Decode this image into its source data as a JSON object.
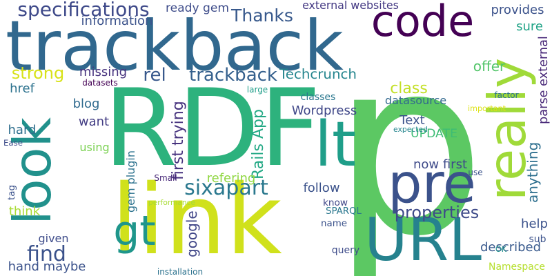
{
  "words": [
    {
      "text": "p",
      "color": "#5cc863"
    },
    {
      "text": "RDF",
      "color": "#2db27d"
    },
    {
      "text": "link",
      "color": "#d0e11c"
    },
    {
      "text": "trackback",
      "color": "#31688e"
    },
    {
      "text": "code",
      "color": "#440154"
    },
    {
      "text": "really",
      "color": "#a0da39"
    },
    {
      "text": "look",
      "color": "#21918c"
    },
    {
      "text": "URL",
      "color": "#26828e"
    },
    {
      "text": "pre",
      "color": "#3b528b"
    },
    {
      "text": "lt",
      "color": "#1f9e89"
    },
    {
      "text": "gt",
      "color": "#1f968b"
    },
    {
      "text": "specifications",
      "color": "#3e4989"
    },
    {
      "text": "sixapart",
      "color": "#2a788e"
    },
    {
      "text": "trackback",
      "color": "#35608d"
    },
    {
      "text": "rel",
      "color": "#38588c"
    },
    {
      "text": "Thanks",
      "color": "#38598c"
    },
    {
      "text": "strong",
      "color": "#d8e219"
    },
    {
      "text": "Techcrunch",
      "color": "#25858e"
    },
    {
      "text": "find",
      "color": "#3b528b"
    },
    {
      "text": "properties",
      "color": "#3e4a89"
    },
    {
      "text": "class",
      "color": "#c2df23"
    },
    {
      "text": "Wordpress",
      "color": "#3f4788"
    },
    {
      "text": "information",
      "color": "#3b528b"
    },
    {
      "text": "ready gem",
      "color": "#3e4c8a"
    },
    {
      "text": "external websites",
      "color": "#443983"
    },
    {
      "text": "provides",
      "color": "#3b528b"
    },
    {
      "text": "sure",
      "color": "#20a386"
    },
    {
      "text": "offer",
      "color": "#52c569"
    },
    {
      "text": "missing",
      "color": "#46327e"
    },
    {
      "text": "href",
      "color": "#2c728e"
    },
    {
      "text": "blog",
      "color": "#306a8e"
    },
    {
      "text": "want",
      "color": "#433d84"
    },
    {
      "text": "hard",
      "color": "#2e6f8e"
    },
    {
      "text": "Text",
      "color": "#3b528b"
    },
    {
      "text": "UPDATE",
      "color": "#3dbc74"
    },
    {
      "text": "datasource",
      "color": "#31688e"
    },
    {
      "text": "classes",
      "color": "#2a778e"
    },
    {
      "text": "first trying",
      "color": "#46327e"
    },
    {
      "text": "Rails App",
      "color": "#22a884"
    },
    {
      "text": "gem plugin",
      "color": "#2c728e"
    },
    {
      "text": "now first",
      "color": "#3e4a89"
    },
    {
      "text": "refering",
      "color": "#90d743"
    },
    {
      "text": "follow",
      "color": "#3b528b"
    },
    {
      "text": "know",
      "color": "#404688"
    },
    {
      "text": "tag",
      "color": "#3b528b"
    },
    {
      "text": "using",
      "color": "#7ad151"
    },
    {
      "text": "think",
      "color": "#a8db34"
    },
    {
      "text": "google",
      "color": "#404688"
    },
    {
      "text": "parse external",
      "color": "#482878"
    },
    {
      "text": "anything",
      "color": "#2e6f8e"
    },
    {
      "text": "help",
      "color": "#3b528b"
    },
    {
      "text": "described",
      "color": "#38598c"
    },
    {
      "text": "given",
      "color": "#3e4c8a"
    },
    {
      "text": "hand maybe",
      "color": "#3b528b"
    },
    {
      "text": "query",
      "color": "#3e4c8a"
    },
    {
      "text": "name",
      "color": "#3b528b"
    },
    {
      "text": "SPARQL",
      "color": "#2a778e"
    },
    {
      "text": "Namespace",
      "color": "#b5de2b"
    },
    {
      "text": "sub",
      "color": "#3b528b"
    },
    {
      "text": "datasets",
      "color": "#440154"
    },
    {
      "text": "large",
      "color": "#1f9e89"
    },
    {
      "text": "factor",
      "color": "#2c728e"
    },
    {
      "text": "important",
      "color": "#dde318"
    },
    {
      "text": "expected",
      "color": "#25858e"
    },
    {
      "text": "use",
      "color": "#3b528b"
    },
    {
      "text": "Ease",
      "color": "#3e4c8a"
    },
    {
      "text": "Small",
      "color": "#482878"
    },
    {
      "text": "performance",
      "color": "#a8db34"
    },
    {
      "text": "installation",
      "color": "#2c728e"
    },
    {
      "text": "OK",
      "color": "#21918c"
    }
  ]
}
